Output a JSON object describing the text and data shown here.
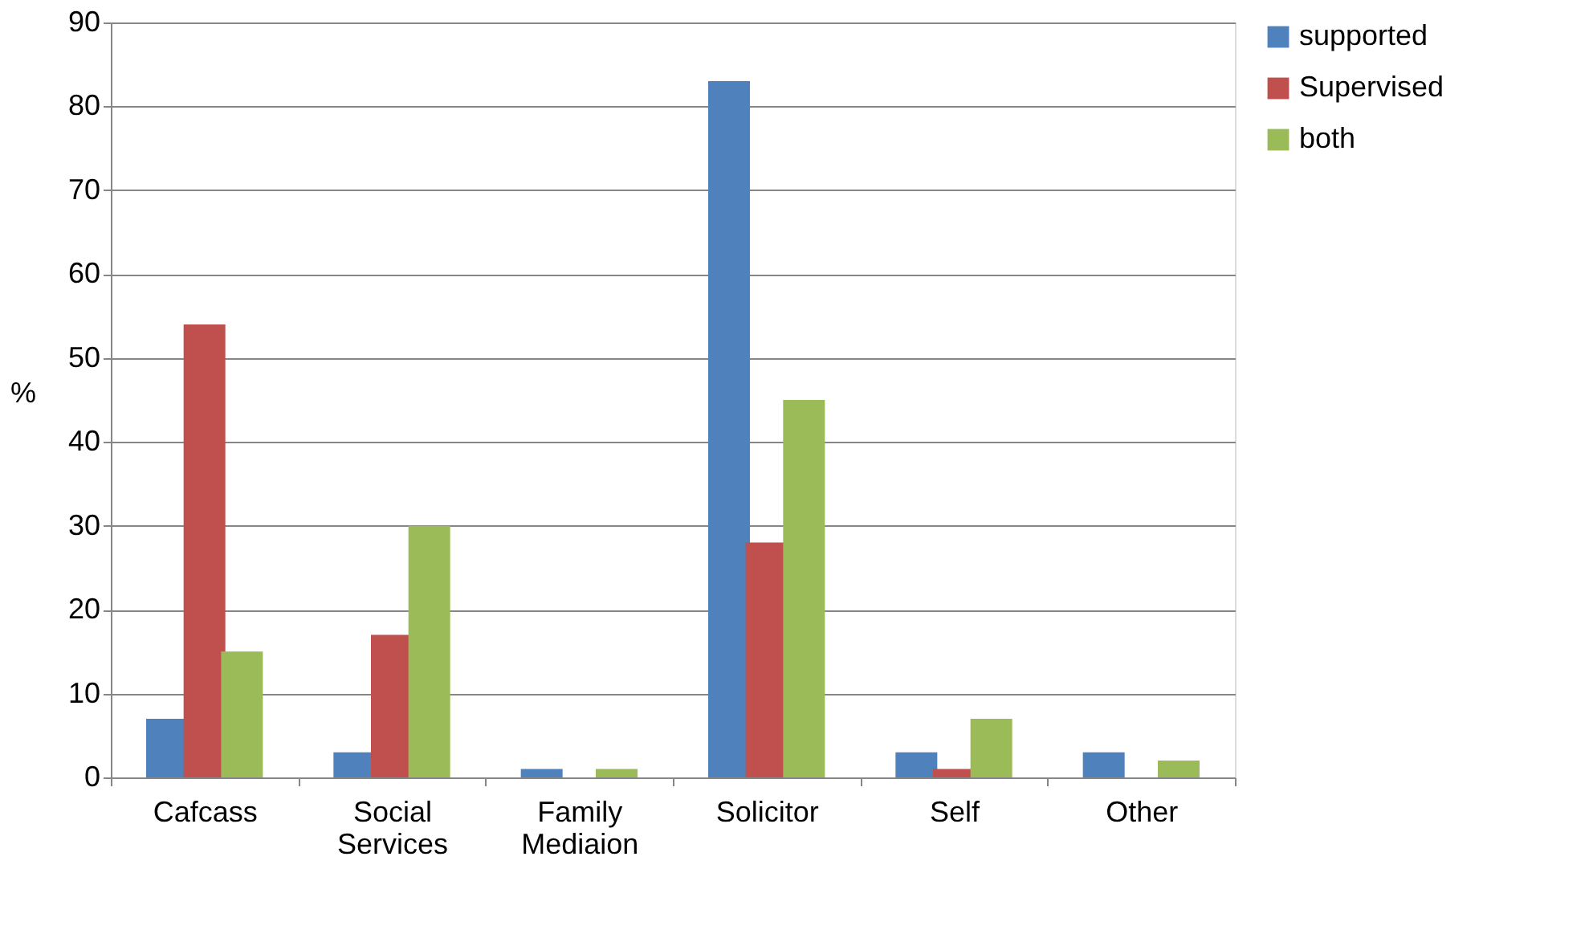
{
  "chart_data": {
    "type": "bar",
    "ylabel": "%",
    "categories": [
      "Cafcass",
      "Social Services",
      "Family Mediaion",
      "Solicitor",
      "Self",
      "Other"
    ],
    "series": [
      {
        "name": "supported",
        "color": "#4f81bd",
        "values": [
          7,
          3,
          1,
          83,
          3,
          3
        ]
      },
      {
        "name": "Supervised",
        "color": "#c0504d",
        "values": [
          54,
          17,
          0,
          28,
          1,
          0
        ]
      },
      {
        "name": "both",
        "color": "#9bbb59",
        "values": [
          15,
          30,
          1,
          45,
          7,
          2
        ]
      }
    ],
    "ylim": [
      0,
      90
    ],
    "yticks": [
      0,
      10,
      20,
      30,
      40,
      50,
      60,
      70,
      80,
      90
    ],
    "grid": "y",
    "legend": "right"
  }
}
